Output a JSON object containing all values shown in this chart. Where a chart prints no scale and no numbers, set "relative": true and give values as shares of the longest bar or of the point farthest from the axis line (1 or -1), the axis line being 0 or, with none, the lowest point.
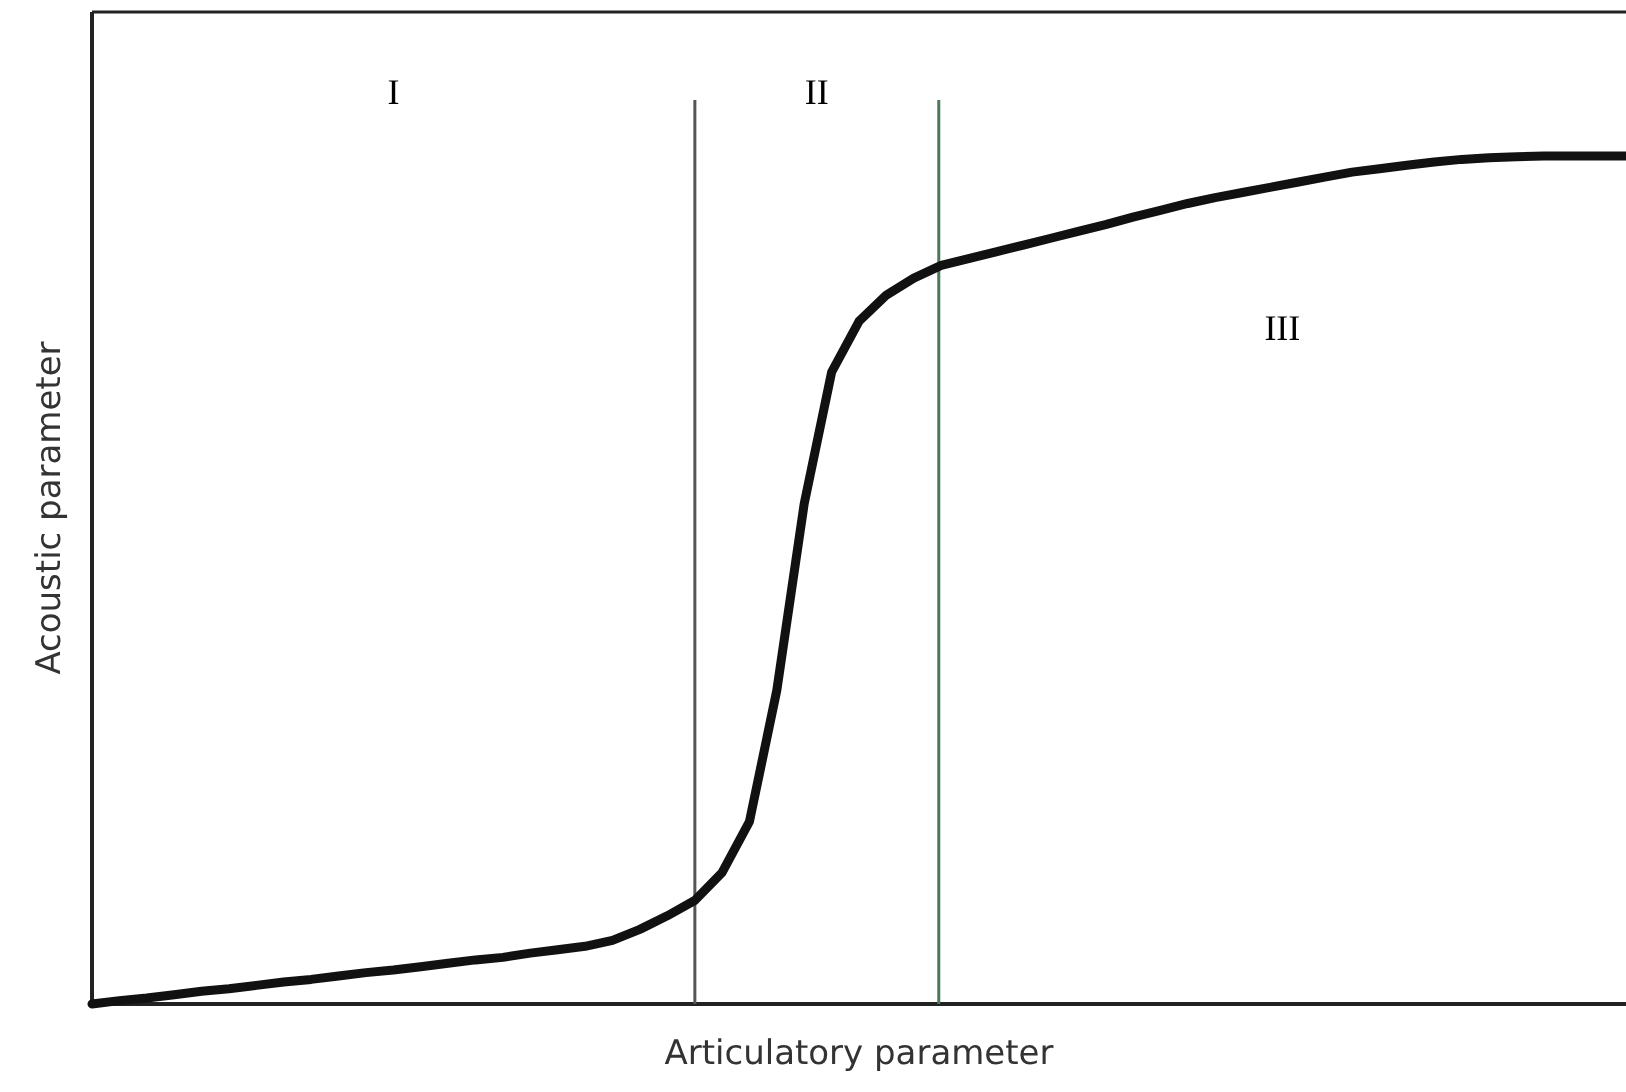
{
  "chart_data": {
    "type": "line",
    "relative": true,
    "xlabel": "Articulatory parameter",
    "ylabel": "Acoustic parameter",
    "categories": [
      null,
      null,
      null,
      null,
      null,
      null,
      null,
      null,
      null,
      null,
      null,
      null,
      null,
      null,
      null,
      null,
      null,
      null,
      null,
      null,
      null,
      null,
      null,
      null,
      null,
      null,
      null,
      null,
      null,
      null,
      null,
      null,
      null,
      null,
      null,
      null,
      null,
      null,
      null,
      null,
      null,
      null,
      null,
      null,
      null,
      null,
      null,
      null,
      null,
      null,
      null,
      null,
      null,
      null,
      null,
      null,
      null
    ],
    "series": [
      {
        "color": "#111111",
        "values": [
          0,
          0.004,
          0.007,
          0.011,
          0.015,
          0.018,
          0.022,
          0.026,
          0.029,
          0.033,
          0.037,
          0.04,
          0.044,
          0.048,
          0.052,
          0.055,
          0.06,
          0.064,
          0.068,
          0.075,
          0.088,
          0.104,
          0.122,
          0.155,
          0.215,
          0.37,
          0.59,
          0.745,
          0.805,
          0.836,
          0.856,
          0.871,
          0.879,
          0.887,
          0.895,
          0.903,
          0.911,
          0.919,
          0.928,
          0.936,
          0.944,
          0.951,
          0.957,
          0.963,
          0.969,
          0.975,
          0.981,
          0.985,
          0.989,
          0.993,
          0.996,
          0.998,
          0.999,
          1.0,
          1.0,
          1.0,
          1.0
        ]
      }
    ],
    "annotations": [
      "I",
      "II",
      "III"
    ],
    "marker": "none",
    "line_style": "solid"
  }
}
